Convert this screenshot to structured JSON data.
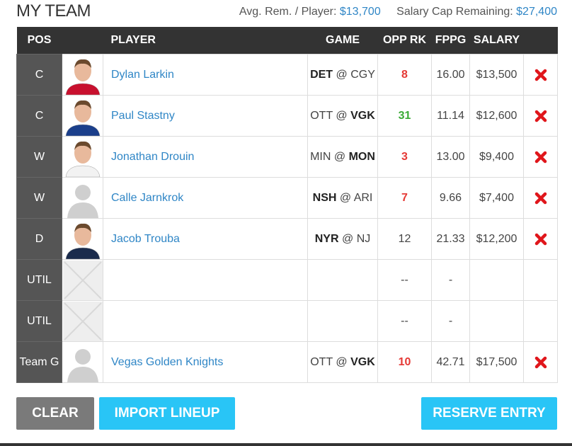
{
  "header": {
    "title": "MY TEAM",
    "avg_label": "Avg. Rem. / Player:",
    "avg_value": "$13,700",
    "cap_label": "Salary Cap Remaining:",
    "cap_value": "$27,400"
  },
  "table": {
    "columns": [
      "POS",
      "PLAYER",
      "GAME",
      "OPP RK",
      "FPPG",
      "SALARY"
    ],
    "game_separator": "@",
    "rows": [
      {
        "pos": "C",
        "photo": "player",
        "photo_color": "#c8102e",
        "player": "Dylan Larkin",
        "game": {
          "away": "DET",
          "home": "CGY",
          "bold": "away"
        },
        "opp_rk": "8",
        "opp_rk_color": "#e53935",
        "fppg": "16.00",
        "salary": "$13,500"
      },
      {
        "pos": "C",
        "photo": "player",
        "photo_color": "#1b3f8b",
        "player": "Paul Stastny",
        "game": {
          "away": "OTT",
          "home": "VGK",
          "bold": "home"
        },
        "opp_rk": "31",
        "opp_rk_color": "#3aaa35",
        "fppg": "11.14",
        "salary": "$12,600"
      },
      {
        "pos": "W",
        "photo": "player",
        "photo_color": "#f2f2f2",
        "player": "Jonathan Drouin",
        "game": {
          "away": "MIN",
          "home": "MON",
          "bold": "home"
        },
        "opp_rk": "3",
        "opp_rk_color": "#e53935",
        "fppg": "13.00",
        "salary": "$9,400"
      },
      {
        "pos": "W",
        "photo": "placeholder",
        "player": "Calle Jarnkrok",
        "game": {
          "away": "NSH",
          "home": "ARI",
          "bold": "away"
        },
        "opp_rk": "7",
        "opp_rk_color": "#e53935",
        "fppg": "9.66",
        "salary": "$7,400"
      },
      {
        "pos": "D",
        "photo": "player",
        "photo_color": "#1a2b4c",
        "player": "Jacob Trouba",
        "game": {
          "away": "NYR",
          "home": "NJ",
          "bold": "away"
        },
        "opp_rk": "12",
        "fppg": "21.33",
        "salary": "$12,200"
      },
      {
        "pos": "UTIL",
        "photo": "empty",
        "opp_rk": "--",
        "fppg": "-"
      },
      {
        "pos": "UTIL",
        "photo": "empty",
        "opp_rk": "--",
        "fppg": "-"
      },
      {
        "pos": "Team G",
        "photo": "placeholder",
        "player": "Vegas Golden Knights",
        "game": {
          "away": "OTT",
          "home": "VGK",
          "bold": "home"
        },
        "opp_rk": "10",
        "opp_rk_color": "#e53935",
        "fppg": "42.71",
        "salary": "$17,500"
      }
    ]
  },
  "buttons": {
    "clear": "CLEAR",
    "import": "IMPORT LINEUP",
    "reserve": "RESERVE ENTRY"
  }
}
